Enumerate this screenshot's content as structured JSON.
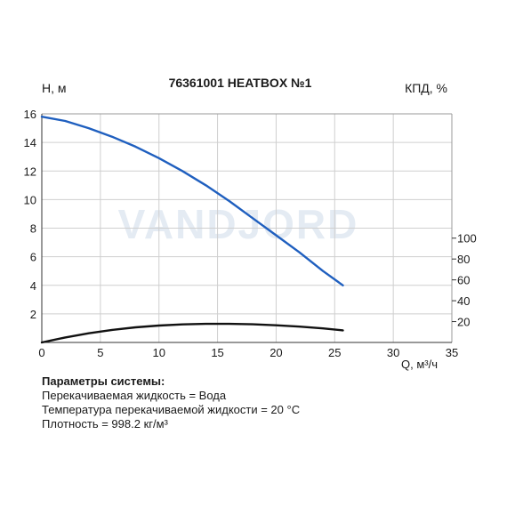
{
  "chart_data": {
    "type": "line",
    "title": "76361001 HEATBOX №1",
    "watermark": "VANDJORD",
    "xlabel": "Q, м³/ч",
    "ylabel": "H, м",
    "y2label": "КПД, %",
    "xlim": [
      0,
      35
    ],
    "ylim": [
      0,
      16
    ],
    "y2lim": [
      0,
      100
    ],
    "x_ticks": [
      0,
      5,
      10,
      15,
      20,
      25,
      30,
      35
    ],
    "y_ticks": [
      2,
      4,
      6,
      8,
      10,
      12,
      14,
      16
    ],
    "y2_ticks": [
      20,
      40,
      60,
      80,
      100
    ],
    "grid": true,
    "series": [
      {
        "axis": "left",
        "color": "#1f5fbf",
        "x": [
          0,
          2,
          4,
          6,
          8,
          10,
          12,
          14,
          16,
          18,
          20,
          22,
          24,
          25.7
        ],
        "y": [
          15.8,
          15.5,
          15.0,
          14.4,
          13.7,
          12.9,
          12.0,
          11.0,
          9.9,
          8.7,
          7.5,
          6.3,
          5.0,
          4.0
        ]
      },
      {
        "axis": "right",
        "color": "#111111",
        "x": [
          0,
          2,
          4,
          6,
          8,
          10,
          12,
          14,
          16,
          18,
          20,
          22,
          24,
          25.7
        ],
        "y": [
          0,
          4.8,
          8.8,
          12.0,
          14.5,
          16.2,
          17.3,
          17.8,
          17.8,
          17.4,
          16.5,
          15.2,
          13.5,
          11.6
        ]
      }
    ]
  },
  "params": {
    "heading": "Параметры системы:",
    "lines": [
      "Перекачиваемая жидкость = Вода",
      "Температура перекачиваемой жидкости = 20 °C",
      "Плотность = 998.2 кг/м³"
    ]
  }
}
